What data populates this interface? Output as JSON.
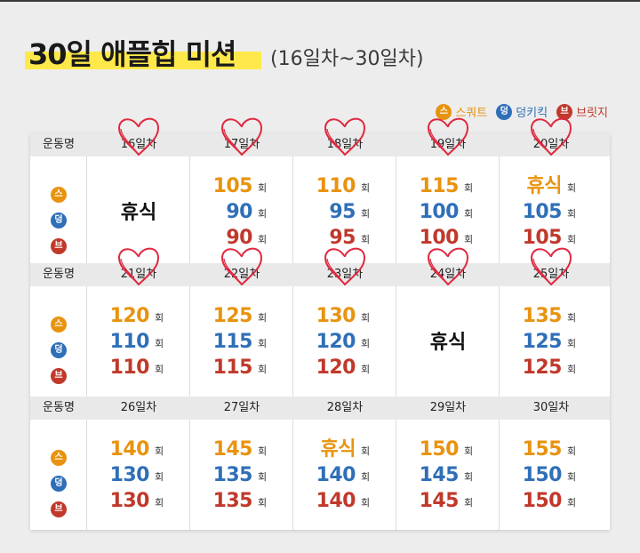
{
  "title": "30일 애플힙 미션",
  "subtitle": "(16일차~30일차)",
  "colors": {
    "squat": "#e8930f",
    "donkey": "#2f6fb8",
    "bridge": "#c0392b",
    "heart": "#e0283f"
  },
  "legend": [
    {
      "badge": "스",
      "label": "스쿼트",
      "color": "#e8930f"
    },
    {
      "badge": "덩",
      "label": "덩키킥",
      "color": "#2f6fb8"
    },
    {
      "badge": "브",
      "label": "브릿지",
      "color": "#c0392b"
    }
  ],
  "exercise_header": "운동명",
  "unit": "회",
  "rest_label": "휴식",
  "weeks": [
    {
      "days": [
        {
          "label": "16일차",
          "rest": true
        },
        {
          "label": "17일차",
          "squat": "105",
          "donkey": "90",
          "bridge": "90"
        },
        {
          "label": "18일차",
          "squat": "110",
          "donkey": "95",
          "bridge": "95"
        },
        {
          "label": "19일차",
          "squat": "115",
          "donkey": "100",
          "bridge": "100"
        },
        {
          "label": "20일차",
          "squat": "휴식",
          "donkey": "105",
          "bridge": "105"
        }
      ]
    },
    {
      "days": [
        {
          "label": "21일차",
          "squat": "120",
          "donkey": "110",
          "bridge": "110"
        },
        {
          "label": "22일차",
          "squat": "125",
          "donkey": "115",
          "bridge": "115"
        },
        {
          "label": "23일차",
          "squat": "130",
          "donkey": "120",
          "bridge": "120"
        },
        {
          "label": "24일차",
          "rest": true
        },
        {
          "label": "25일차",
          "squat": "135",
          "donkey": "125",
          "bridge": "125"
        }
      ]
    },
    {
      "days": [
        {
          "label": "26일차",
          "squat": "140",
          "donkey": "130",
          "bridge": "130"
        },
        {
          "label": "27일차",
          "squat": "145",
          "donkey": "135",
          "bridge": "135"
        },
        {
          "label": "28일차",
          "squat": "휴식",
          "donkey": "140",
          "bridge": "140"
        },
        {
          "label": "29일차",
          "squat": "150",
          "donkey": "145",
          "bridge": "145"
        },
        {
          "label": "30일차",
          "squat": "155",
          "donkey": "150",
          "bridge": "150"
        }
      ]
    }
  ],
  "hearts_on_days": [
    "16일차",
    "17일차",
    "18일차",
    "19일차",
    "20일차",
    "21일차",
    "22일차",
    "23일차",
    "24일차",
    "25일차"
  ]
}
